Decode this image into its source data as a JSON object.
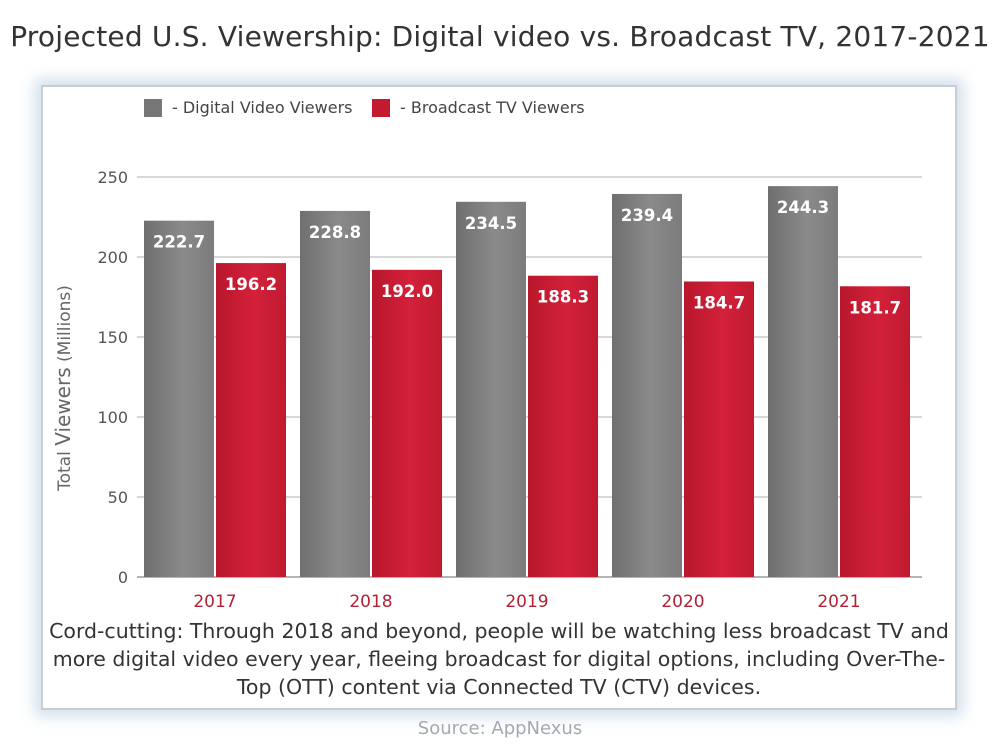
{
  "chart_data": {
    "type": "bar",
    "title": "Projected U.S. Viewership: Digital video vs. Broadcast TV, 2017-2021",
    "categories": [
      "2017",
      "2018",
      "2019",
      "2020",
      "2021"
    ],
    "series": [
      {
        "name": "- Digital Video Viewers",
        "values": [
          222.7,
          228.8,
          234.5,
          239.4,
          244.3
        ],
        "color": "#7a7a7a",
        "labels": [
          "222.7",
          "228.8",
          "234.5",
          "239.4",
          "244.3"
        ]
      },
      {
        "name": "- Broadcast TV Viewers",
        "values": [
          196.2,
          192.0,
          188.3,
          184.7,
          181.7
        ],
        "color": "#c41a30",
        "labels": [
          "196.2",
          "192.0",
          "188.3",
          "184.7",
          "181.7"
        ]
      }
    ],
    "ylabel_prefix": "Total ",
    "ylabel_main": "Viewers",
    "ylabel_suffix": " (Millions)",
    "ylim": [
      0,
      250
    ],
    "yticks": [
      "0",
      "50",
      "100",
      "150",
      "200",
      "250"
    ],
    "grid": true,
    "legend": "top-left",
    "category_label_color": "#b22234"
  },
  "caption": "Cord-cutting: Through 2018 and beyond, people will be watching less broadcast TV and more digital video every year, fleeing broadcast for digital options, including Over-The-Top (OTT) content via Connected TV (CTV) devices.",
  "source": "Source: AppNexus"
}
